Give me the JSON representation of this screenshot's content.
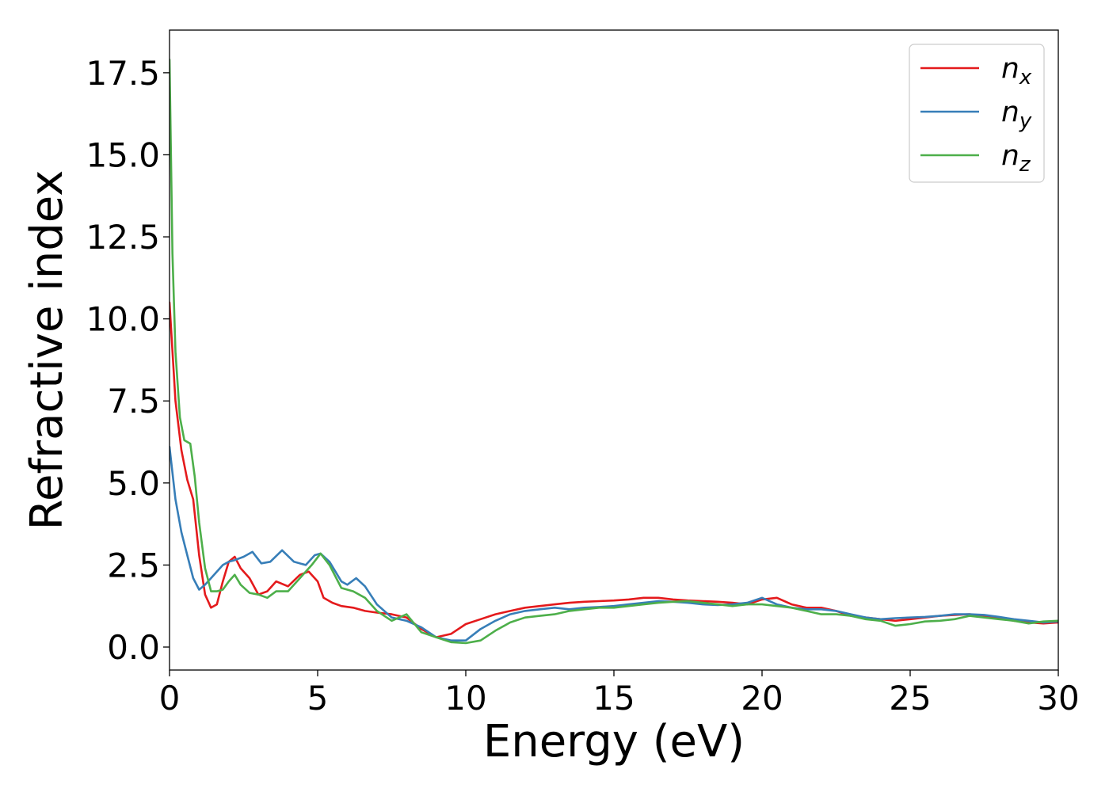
{
  "chart_data": {
    "type": "line",
    "title": "",
    "xlabel": "Energy (eV)",
    "ylabel": "Refractive index",
    "xlim": [
      0,
      30
    ],
    "ylim": [
      -0.7,
      18.8
    ],
    "xticks": [
      0,
      5,
      10,
      15,
      20,
      25,
      30
    ],
    "xtick_labels": [
      "0",
      "5",
      "10",
      "15",
      "20",
      "25",
      "30"
    ],
    "yticks": [
      0.0,
      2.5,
      5.0,
      7.5,
      10.0,
      12.5,
      15.0,
      17.5
    ],
    "ytick_labels": [
      "0.0",
      "2.5",
      "5.0",
      "7.5",
      "10.0",
      "12.5",
      "15.0",
      "17.5"
    ],
    "grid": false,
    "legend_position": "top-right",
    "series": [
      {
        "name": "n_x",
        "legend_base": "n",
        "legend_sub": "x",
        "color": "#e41a1c",
        "x": [
          0,
          0.2,
          0.4,
          0.6,
          0.8,
          1.0,
          1.2,
          1.4,
          1.6,
          1.8,
          2.0,
          2.2,
          2.4,
          2.7,
          3.0,
          3.3,
          3.6,
          4.0,
          4.4,
          4.7,
          5.0,
          5.2,
          5.5,
          5.8,
          6.2,
          6.6,
          7.0,
          7.5,
          8.0,
          8.5,
          9.0,
          9.5,
          10.0,
          10.5,
          11.0,
          11.5,
          12.0,
          12.5,
          13.0,
          13.5,
          14.0,
          14.5,
          15.0,
          15.5,
          16.0,
          16.5,
          17.0,
          17.5,
          18.0,
          18.5,
          19.0,
          19.5,
          20.0,
          20.5,
          21.0,
          21.5,
          22.0,
          22.5,
          23.0,
          23.5,
          24.0,
          24.5,
          25.0,
          25.5,
          26.0,
          26.5,
          27.0,
          27.5,
          28.0,
          28.5,
          29.0,
          29.5,
          30.0
        ],
        "y": [
          10.5,
          7.5,
          6.0,
          5.1,
          4.5,
          2.8,
          1.6,
          1.2,
          1.3,
          2.0,
          2.6,
          2.75,
          2.4,
          2.1,
          1.6,
          1.7,
          2.0,
          1.85,
          2.2,
          2.3,
          2.0,
          1.5,
          1.35,
          1.25,
          1.2,
          1.1,
          1.05,
          1.0,
          0.9,
          0.55,
          0.3,
          0.4,
          0.7,
          0.85,
          1.0,
          1.1,
          1.2,
          1.25,
          1.3,
          1.35,
          1.38,
          1.4,
          1.42,
          1.45,
          1.5,
          1.5,
          1.45,
          1.42,
          1.4,
          1.38,
          1.35,
          1.3,
          1.45,
          1.5,
          1.3,
          1.2,
          1.2,
          1.1,
          0.95,
          0.9,
          0.85,
          0.8,
          0.85,
          0.9,
          0.95,
          0.98,
          1.0,
          0.95,
          0.9,
          0.8,
          0.75,
          0.72,
          0.75
        ]
      },
      {
        "name": "n_y",
        "legend_base": "n",
        "legend_sub": "y",
        "color": "#377eb8",
        "x": [
          0,
          0.2,
          0.4,
          0.6,
          0.8,
          1.0,
          1.2,
          1.4,
          1.6,
          1.8,
          2.0,
          2.2,
          2.5,
          2.8,
          3.1,
          3.4,
          3.8,
          4.2,
          4.6,
          4.9,
          5.1,
          5.4,
          5.8,
          6.0,
          6.3,
          6.6,
          7.0,
          7.5,
          8.0,
          8.5,
          9.0,
          9.5,
          10.0,
          10.5,
          11.0,
          11.5,
          12.0,
          12.5,
          13.0,
          13.5,
          14.0,
          14.5,
          15.0,
          15.5,
          16.0,
          16.5,
          17.0,
          17.5,
          18.0,
          18.5,
          19.0,
          19.5,
          20.0,
          20.5,
          21.0,
          21.5,
          22.0,
          22.5,
          23.0,
          23.5,
          24.0,
          24.5,
          25.0,
          25.5,
          26.0,
          26.5,
          27.0,
          27.5,
          28.0,
          28.5,
          29.0,
          29.5,
          30.0
        ],
        "y": [
          6.1,
          4.5,
          3.5,
          2.8,
          2.1,
          1.75,
          1.9,
          2.1,
          2.3,
          2.5,
          2.6,
          2.65,
          2.75,
          2.9,
          2.55,
          2.6,
          2.95,
          2.6,
          2.5,
          2.8,
          2.85,
          2.6,
          2.0,
          1.9,
          2.1,
          1.85,
          1.3,
          0.9,
          0.8,
          0.6,
          0.3,
          0.2,
          0.2,
          0.55,
          0.8,
          1.0,
          1.1,
          1.15,
          1.2,
          1.15,
          1.2,
          1.22,
          1.25,
          1.3,
          1.35,
          1.4,
          1.38,
          1.35,
          1.3,
          1.28,
          1.3,
          1.35,
          1.5,
          1.3,
          1.2,
          1.15,
          1.15,
          1.1,
          1.0,
          0.9,
          0.85,
          0.88,
          0.9,
          0.92,
          0.95,
          1.0,
          1.0,
          0.98,
          0.92,
          0.85,
          0.8,
          0.75,
          0.78
        ]
      },
      {
        "name": "n_z",
        "legend_base": "n",
        "legend_sub": "z",
        "color": "#4daf4a",
        "x": [
          0,
          0.1,
          0.2,
          0.35,
          0.5,
          0.7,
          0.85,
          1.0,
          1.2,
          1.4,
          1.6,
          1.8,
          2.0,
          2.2,
          2.4,
          2.7,
          3.0,
          3.3,
          3.6,
          4.0,
          4.4,
          4.8,
          5.1,
          5.4,
          5.8,
          6.2,
          6.6,
          7.0,
          7.5,
          8.0,
          8.5,
          9.0,
          9.5,
          10.0,
          10.5,
          11.0,
          11.5,
          12.0,
          12.5,
          13.0,
          13.5,
          14.0,
          14.5,
          15.0,
          15.5,
          16.0,
          16.5,
          17.0,
          17.5,
          18.0,
          18.5,
          19.0,
          19.5,
          20.0,
          20.5,
          21.0,
          21.5,
          22.0,
          22.5,
          23.0,
          23.5,
          24.0,
          24.5,
          25.0,
          25.5,
          26.0,
          26.5,
          27.0,
          27.5,
          28.0,
          28.5,
          29.0,
          29.5,
          30.0
        ],
        "y": [
          17.9,
          12.0,
          9.0,
          7.0,
          6.3,
          6.2,
          5.2,
          3.8,
          2.4,
          1.7,
          1.7,
          1.75,
          2.0,
          2.2,
          1.9,
          1.65,
          1.6,
          1.5,
          1.7,
          1.7,
          2.1,
          2.5,
          2.85,
          2.5,
          1.8,
          1.7,
          1.5,
          1.1,
          0.8,
          1.0,
          0.45,
          0.3,
          0.15,
          0.12,
          0.2,
          0.5,
          0.75,
          0.9,
          0.95,
          1.0,
          1.1,
          1.15,
          1.2,
          1.2,
          1.25,
          1.3,
          1.35,
          1.38,
          1.4,
          1.35,
          1.3,
          1.25,
          1.3,
          1.3,
          1.25,
          1.2,
          1.1,
          1.0,
          1.0,
          0.95,
          0.85,
          0.8,
          0.65,
          0.7,
          0.78,
          0.8,
          0.85,
          0.95,
          0.9,
          0.85,
          0.8,
          0.72,
          0.78,
          0.8
        ]
      }
    ]
  }
}
